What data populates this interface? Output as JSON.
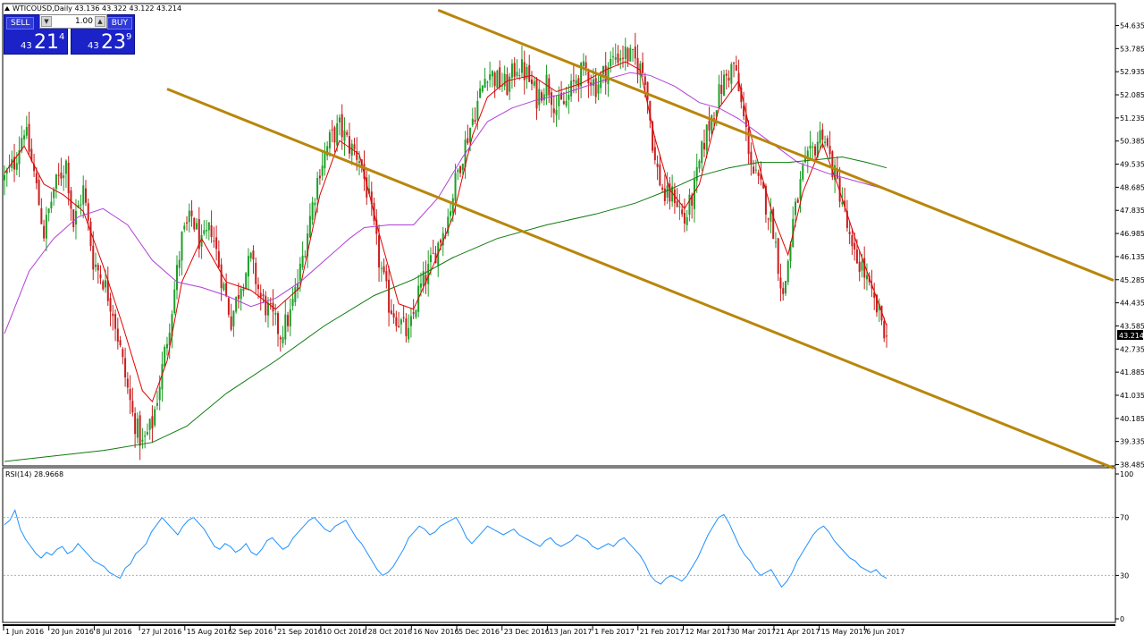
{
  "symbol_info": "WTICOUSD,Daily  43.136 43.322 43.122 43.214",
  "rsi_label": "RSI(14) 28.9668",
  "trade_panel": {
    "sell_label": "SELL",
    "buy_label": "BUY",
    "lot": "1.00",
    "lot_down": "▼",
    "lot_up": "▲",
    "sell_small": "43",
    "sell_big": "21",
    "sell_sup": "4",
    "buy_small": "43",
    "buy_big": "23",
    "buy_sup": "9"
  },
  "colors": {
    "candle_up": "#1e9e28",
    "candle_down": "#c81e1e",
    "ma_fast": "#e00000",
    "ma_mid": "#b03fd8",
    "ma_slow": "#0e7a0e",
    "channel": "#b8860b",
    "rsi": "#1e90ff",
    "bid_tag_bg": "#000000"
  },
  "chart_data": [
    {
      "type": "candlestick",
      "symbol": "WTICOUSD",
      "timeframe": "Daily",
      "y_ticks": [
        "54.635",
        "53.785",
        "52.935",
        "52.085",
        "51.235",
        "50.385",
        "49.535",
        "48.685",
        "47.835",
        "46.985",
        "46.135",
        "45.285",
        "44.435",
        "43.585",
        "42.735",
        "41.885",
        "41.035",
        "40.185",
        "39.335",
        "38.485"
      ],
      "ylim": [
        38.485,
        55.2
      ],
      "x_tick_labels": [
        "1 Jun 2016",
        "20 Jun 2016",
        "8 Jul 2016",
        "27 Jul 2016",
        "15 Aug 2016",
        "2 Sep 2016",
        "21 Sep 2016",
        "10 Oct 2016",
        "28 Oct 2016",
        "16 Nov 2016",
        "5 Dec 2016",
        "23 Dec 2016",
        "13 Jan 2017",
        "1 Feb 2017",
        "21 Feb 2017",
        "12 Mar 2017",
        "30 Mar 2017",
        "21 Apr 2017",
        "15 May 2017",
        "6 Jun 2017"
      ],
      "current_price": "43.214",
      "close_path": [
        [
          0,
          49.0
        ],
        [
          4,
          49.6
        ],
        [
          8,
          50.9
        ],
        [
          12,
          49.2
        ],
        [
          16,
          47.0
        ],
        [
          20,
          48.6
        ],
        [
          25,
          49.6
        ],
        [
          28,
          47.3
        ],
        [
          32,
          48.6
        ],
        [
          36,
          46.0
        ],
        [
          40,
          45.3
        ],
        [
          44,
          44.2
        ],
        [
          48,
          42.2
        ],
        [
          52,
          40.3
        ],
        [
          56,
          39.2
        ],
        [
          60,
          40.0
        ],
        [
          64,
          42.0
        ],
        [
          68,
          44.3
        ],
        [
          72,
          46.8
        ],
        [
          76,
          47.6
        ],
        [
          80,
          46.5
        ],
        [
          84,
          47.2
        ],
        [
          88,
          45.4
        ],
        [
          92,
          43.8
        ],
        [
          96,
          45.2
        ],
        [
          100,
          46.0
        ],
        [
          104,
          44.6
        ],
        [
          108,
          44.0
        ],
        [
          112,
          43.3
        ],
        [
          116,
          44.0
        ],
        [
          120,
          45.6
        ],
        [
          124,
          47.6
        ],
        [
          128,
          49.4
        ],
        [
          132,
          50.4
        ],
        [
          136,
          50.9
        ],
        [
          140,
          50.2
        ],
        [
          144,
          49.8
        ],
        [
          148,
          48.2
        ],
        [
          152,
          46.0
        ],
        [
          156,
          44.4
        ],
        [
          160,
          43.8
        ],
        [
          164,
          43.2
        ],
        [
          168,
          44.8
        ],
        [
          172,
          45.6
        ],
        [
          176,
          46.6
        ],
        [
          180,
          47.6
        ],
        [
          184,
          49.3
        ],
        [
          188,
          50.6
        ],
        [
          192,
          51.8
        ],
        [
          196,
          53.0
        ],
        [
          200,
          52.6
        ],
        [
          204,
          52.4
        ],
        [
          208,
          53.2
        ],
        [
          212,
          52.8
        ],
        [
          216,
          52.0
        ],
        [
          220,
          52.6
        ],
        [
          224,
          51.6
        ],
        [
          228,
          51.8
        ],
        [
          232,
          52.7
        ],
        [
          236,
          53.0
        ],
        [
          240,
          52.4
        ],
        [
          244,
          53.0
        ],
        [
          248,
          53.5
        ],
        [
          252,
          53.6
        ],
        [
          256,
          53.3
        ],
        [
          260,
          52.8
        ],
        [
          264,
          49.6
        ],
        [
          268,
          48.3
        ],
        [
          272,
          48.4
        ],
        [
          276,
          47.4
        ],
        [
          280,
          48.6
        ],
        [
          284,
          50.4
        ],
        [
          288,
          51.6
        ],
        [
          292,
          52.6
        ],
        [
          296,
          53.2
        ],
        [
          300,
          51.2
        ],
        [
          304,
          49.2
        ],
        [
          308,
          48.4
        ],
        [
          312,
          47.2
        ],
        [
          316,
          44.6
        ],
        [
          320,
          47.4
        ],
        [
          324,
          49.2
        ],
        [
          328,
          50.0
        ],
        [
          332,
          50.8
        ],
        [
          336,
          49.4
        ],
        [
          340,
          48.2
        ],
        [
          344,
          46.2
        ],
        [
          348,
          45.8
        ],
        [
          352,
          44.6
        ],
        [
          356,
          43.8
        ],
        [
          358,
          43.2
        ]
      ],
      "series": [
        {
          "name": "MA fast",
          "points": [
            [
              0,
              49.2
            ],
            [
              8,
              50.2
            ],
            [
              16,
              48.8
            ],
            [
              24,
              48.4
            ],
            [
              32,
              47.8
            ],
            [
              40,
              45.8
            ],
            [
              48,
              43.6
            ],
            [
              56,
              41.2
            ],
            [
              60,
              40.8
            ],
            [
              66,
              42.3
            ],
            [
              72,
              45.2
            ],
            [
              80,
              46.8
            ],
            [
              90,
              45.2
            ],
            [
              100,
              44.9
            ],
            [
              110,
              44.2
            ],
            [
              120,
              45.0
            ],
            [
              128,
              48.4
            ],
            [
              136,
              50.4
            ],
            [
              144,
              49.9
            ],
            [
              152,
              47.0
            ],
            [
              160,
              44.4
            ],
            [
              166,
              44.2
            ],
            [
              174,
              45.8
            ],
            [
              182,
              47.6
            ],
            [
              190,
              50.6
            ],
            [
              196,
              52.0
            ],
            [
              204,
              52.6
            ],
            [
              214,
              52.8
            ],
            [
              224,
              52.2
            ],
            [
              234,
              52.5
            ],
            [
              244,
              53.0
            ],
            [
              252,
              53.3
            ],
            [
              258,
              53.0
            ],
            [
              264,
              50.5
            ],
            [
              270,
              48.6
            ],
            [
              276,
              47.9
            ],
            [
              282,
              48.8
            ],
            [
              290,
              51.6
            ],
            [
              298,
              52.6
            ],
            [
              304,
              50.2
            ],
            [
              312,
              47.6
            ],
            [
              318,
              46.2
            ],
            [
              324,
              48.5
            ],
            [
              332,
              50.3
            ],
            [
              338,
              48.8
            ],
            [
              346,
              46.6
            ],
            [
              354,
              44.6
            ],
            [
              358,
              43.6
            ]
          ]
        },
        {
          "name": "MA mid",
          "points": [
            [
              0,
              43.3
            ],
            [
              10,
              45.6
            ],
            [
              20,
              46.8
            ],
            [
              30,
              47.6
            ],
            [
              40,
              47.9
            ],
            [
              50,
              47.3
            ],
            [
              60,
              46.0
            ],
            [
              70,
              45.2
            ],
            [
              80,
              45.0
            ],
            [
              90,
              44.7
            ],
            [
              100,
              44.3
            ],
            [
              110,
              44.6
            ],
            [
              120,
              45.2
            ],
            [
              130,
              46.0
            ],
            [
              140,
              46.8
            ],
            [
              146,
              47.2
            ],
            [
              156,
              47.3
            ],
            [
              166,
              47.3
            ],
            [
              176,
              48.3
            ],
            [
              186,
              49.8
            ],
            [
              196,
              51.1
            ],
            [
              206,
              51.6
            ],
            [
              216,
              51.9
            ],
            [
              226,
              52.1
            ],
            [
              236,
              52.4
            ],
            [
              246,
              52.7
            ],
            [
              254,
              52.9
            ],
            [
              262,
              52.8
            ],
            [
              272,
              52.4
            ],
            [
              282,
              51.8
            ],
            [
              290,
              51.6
            ],
            [
              298,
              51.2
            ],
            [
              310,
              50.4
            ],
            [
              322,
              49.6
            ],
            [
              334,
              49.2
            ],
            [
              346,
              48.9
            ],
            [
              358,
              48.6
            ]
          ]
        },
        {
          "name": "MA slow",
          "points": [
            [
              0,
              38.6
            ],
            [
              20,
              38.8
            ],
            [
              40,
              39.0
            ],
            [
              60,
              39.3
            ],
            [
              74,
              39.9
            ],
            [
              90,
              41.1
            ],
            [
              110,
              42.3
            ],
            [
              130,
              43.6
            ],
            [
              150,
              44.7
            ],
            [
              166,
              45.3
            ],
            [
              182,
              46.1
            ],
            [
              200,
              46.8
            ],
            [
              220,
              47.3
            ],
            [
              240,
              47.7
            ],
            [
              256,
              48.1
            ],
            [
              270,
              48.6
            ],
            [
              282,
              49.1
            ],
            [
              294,
              49.4
            ],
            [
              306,
              49.6
            ],
            [
              318,
              49.6
            ],
            [
              330,
              49.7
            ],
            [
              340,
              49.8
            ],
            [
              350,
              49.6
            ],
            [
              358,
              49.4
            ]
          ]
        }
      ],
      "channel_lines": [
        {
          "from": [
            66,
            52.3
          ],
          "to": [
            358,
            41.7
          ]
        },
        {
          "from": [
            176,
            55.2
          ],
          "to": [
            358,
            48.6
          ]
        }
      ]
    },
    {
      "type": "line",
      "name": "RSI(14)",
      "ylim": [
        0,
        100
      ],
      "y_ticks": [
        "100",
        "70",
        "30",
        "0"
      ],
      "levels": [
        70,
        30
      ],
      "values": [
        65,
        68,
        75,
        62,
        55,
        50,
        45,
        42,
        46,
        44,
        48,
        50,
        45,
        47,
        52,
        48,
        44,
        40,
        38,
        36,
        32,
        30,
        28,
        35,
        38,
        45,
        48,
        52,
        60,
        65,
        70,
        66,
        62,
        58,
        64,
        68,
        70,
        66,
        62,
        56,
        50,
        48,
        52,
        50,
        46,
        48,
        52,
        46,
        44,
        48,
        54,
        56,
        52,
        48,
        50,
        56,
        60,
        64,
        68,
        70,
        66,
        62,
        60,
        64,
        66,
        68,
        62,
        56,
        52,
        46,
        40,
        34,
        30,
        32,
        36,
        42,
        48,
        56,
        60,
        64,
        62,
        58,
        60,
        64,
        66,
        68,
        70,
        64,
        56,
        52,
        56,
        60,
        64,
        62,
        60,
        58,
        60,
        62,
        58,
        56,
        54,
        52,
        50,
        54,
        56,
        52,
        50,
        52,
        54,
        58,
        56,
        54,
        50,
        48,
        50,
        52,
        50,
        54,
        56,
        52,
        48,
        44,
        38,
        30,
        26,
        24,
        28,
        30,
        28,
        26,
        30,
        36,
        42,
        50,
        58,
        64,
        70,
        72,
        66,
        58,
        50,
        44,
        40,
        34,
        30,
        32,
        34,
        28,
        22,
        26,
        32,
        40,
        46,
        52,
        58,
        62,
        64,
        60,
        54,
        50,
        46,
        42,
        40,
        36,
        34,
        32,
        34,
        30,
        28
      ]
    }
  ]
}
